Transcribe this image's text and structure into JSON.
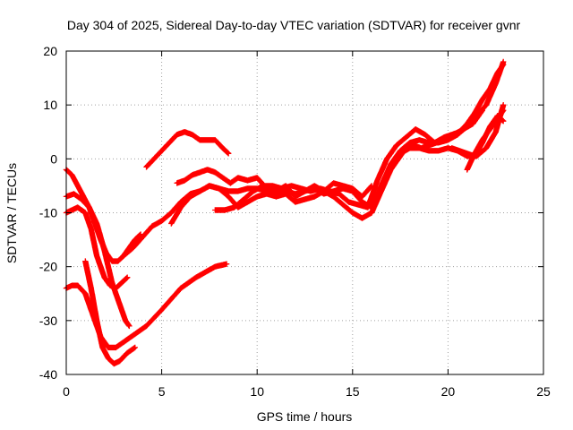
{
  "chart_data": {
    "type": "scatter",
    "title": "Day 304 of 2025, Sidereal Day-to-day VTEC variation (SDTVAR) for receiver gvnr",
    "xlabel": "GPS time / hours",
    "ylabel": "SDTVAR / TECUs",
    "xlim": [
      0,
      25
    ],
    "ylim": [
      -40,
      20
    ],
    "xticks": [
      "0",
      "5",
      "10",
      "15",
      "20",
      "25"
    ],
    "yticks": [
      "-40",
      "-30",
      "-20",
      "-10",
      "0",
      "10",
      "20"
    ],
    "grid": true,
    "marker": "+",
    "color": "#ff0000",
    "series": [
      {
        "x": [
          0.0,
          0.4,
          0.8,
          1.2,
          1.6,
          2.0,
          2.4,
          2.8,
          3.1,
          3.3
        ],
        "y": [
          -7,
          -6.5,
          -7.5,
          -9,
          -12,
          -17,
          -23,
          -27,
          -30,
          -31
        ]
      },
      {
        "x": [
          0.0,
          0.3,
          0.6,
          1.0,
          1.4,
          1.8,
          2.2,
          2.6,
          3.0,
          3.6,
          4.2,
          5.0,
          6.0,
          6.8,
          7.3,
          7.8,
          8.4
        ],
        "y": [
          -24,
          -23.5,
          -23.5,
          -25,
          -29,
          -33,
          -35,
          -35,
          -34,
          -32.5,
          -31,
          -28,
          -24,
          -22,
          -21,
          -20,
          -19.5
        ]
      },
      {
        "x": [
          1.0,
          1.3,
          1.6,
          1.9,
          2.2,
          2.5,
          2.8,
          3.2,
          3.6
        ],
        "y": [
          -19,
          -24,
          -30,
          -35,
          -37,
          -38,
          -37.5,
          -36,
          -35
        ]
      },
      {
        "x": [
          0.0,
          0.3,
          0.6,
          1.0,
          1.3,
          1.6,
          2.0,
          2.3,
          2.6,
          2.9,
          3.2
        ],
        "y": [
          -10,
          -9.5,
          -9,
          -10,
          -13,
          -18,
          -22,
          -23.5,
          -24,
          -23,
          -22
        ]
      },
      {
        "x": [
          0.0,
          0.3,
          0.6,
          0.9,
          1.2,
          1.5,
          1.8,
          2.1,
          2.4,
          2.7,
          3.0,
          3.3,
          3.6,
          3.9
        ],
        "y": [
          -2,
          -3,
          -5,
          -7,
          -9,
          -12,
          -15,
          -17.5,
          -19,
          -19,
          -18,
          -16.5,
          -15,
          -14
        ]
      },
      {
        "x": [
          3.0,
          3.5,
          4.0,
          4.5,
          5.0,
          5.5,
          6.0,
          6.5,
          7.0,
          7.5,
          8.0,
          8.5,
          9.0,
          9.5,
          10.0,
          10.5,
          11.0,
          11.5,
          12.0,
          12.5,
          13.0,
          13.5,
          14.0,
          14.5,
          15.0,
          15.5,
          16.0,
          16.5,
          17.0,
          17.5,
          18.0,
          18.5,
          19.0,
          19.5,
          20.0,
          20.5,
          21.0,
          21.5,
          22.0,
          22.5,
          22.9
        ],
        "y": [
          -18,
          -16.5,
          -14.5,
          -12.5,
          -11.5,
          -10,
          -8,
          -6.5,
          -6,
          -5,
          -5.5,
          -6,
          -6,
          -5.5,
          -5.5,
          -6,
          -6.5,
          -6,
          -6.5,
          -6,
          -5.5,
          -6.5,
          -6,
          -5.5,
          -6,
          -8,
          -9,
          -5,
          -1,
          1.5,
          3,
          3.5,
          3,
          3,
          3.5,
          4.5,
          6,
          8,
          10,
          14,
          18
        ]
      },
      {
        "x": [
          4.2,
          4.6,
          5.0,
          5.4,
          5.8,
          6.2,
          6.6,
          7.0,
          7.4,
          7.8,
          8.2,
          8.5
        ],
        "y": [
          -1.5,
          0,
          1.5,
          3,
          4.5,
          5,
          4.5,
          3.5,
          3.5,
          3.5,
          2,
          1
        ]
      },
      {
        "x": [
          5.5,
          6.0,
          6.5,
          7.0,
          7.5,
          8.0,
          8.5,
          9.0,
          9.5,
          10.0,
          10.5,
          11.0,
          11.5,
          12.0,
          12.5,
          13.0,
          13.5,
          14.0,
          14.5,
          15.0,
          15.5,
          16.0,
          16.5,
          17.0,
          17.5,
          18.0,
          18.5,
          19.0,
          19.5,
          20.0,
          20.5,
          21.0,
          21.5,
          22.0,
          22.5,
          22.9
        ],
        "y": [
          -12,
          -9,
          -7,
          -6,
          -5,
          -5.5,
          -7,
          -9,
          -8,
          -7,
          -6.5,
          -7,
          -6.5,
          -8,
          -7.5,
          -7,
          -6,
          -7,
          -8.5,
          -10,
          -11,
          -10,
          -6,
          -2,
          1,
          2,
          2,
          1.5,
          1.5,
          2,
          1.5,
          0.5,
          0.5,
          2,
          5,
          10
        ]
      },
      {
        "x": [
          5.8,
          6.2,
          6.6,
          7.0,
          7.4,
          7.8,
          8.2,
          8.6,
          9.0,
          9.5,
          10.0,
          10.5,
          11.0,
          11.5,
          12.0,
          12.5,
          13.0,
          13.5,
          14.0,
          14.5,
          15.0,
          15.5,
          16.0
        ],
        "y": [
          -4.5,
          -4,
          -3,
          -2.5,
          -2,
          -2.5,
          -3.5,
          -4.5,
          -3.5,
          -4,
          -3.5,
          -5.5,
          -6,
          -5,
          -7,
          -6,
          -5,
          -6,
          -4.5,
          -5,
          -5.5,
          -7,
          -5
        ]
      },
      {
        "x": [
          7.8,
          8.3,
          8.8,
          9.3,
          9.8,
          10.3,
          10.8,
          11.3,
          11.8,
          12.3,
          12.8,
          13.3,
          13.8,
          14.3,
          14.8,
          15.3,
          15.8,
          16.3,
          16.8,
          17.3,
          17.8,
          18.3,
          18.8,
          19.3,
          19.8,
          20.3,
          20.8,
          21.3,
          21.8
        ],
        "y": [
          -9.5,
          -9.5,
          -9,
          -7.5,
          -6,
          -5,
          -5,
          -5.5,
          -5,
          -5.5,
          -6,
          -5.5,
          -6,
          -6.5,
          -8,
          -8.5,
          -9,
          -4,
          0,
          2.5,
          4,
          5.5,
          4.5,
          3,
          4,
          4.5,
          5.5,
          6.5,
          9
        ]
      },
      {
        "x": [
          16.6,
          17.0,
          17.4,
          17.8,
          18.2,
          18.6,
          19.0,
          19.4,
          19.8,
          20.2,
          20.6,
          21.0,
          21.4,
          21.8,
          22.2,
          22.6,
          22.9
        ],
        "y": [
          -5,
          -2,
          0,
          2,
          2.5,
          2,
          2.5,
          3,
          4,
          4.5,
          5,
          6.5,
          8.5,
          11,
          13,
          16,
          17.5
        ]
      },
      {
        "x": [
          21.0,
          21.4,
          21.8,
          22.2,
          22.6,
          22.9
        ],
        "y": [
          -2,
          1,
          3.5,
          5.5,
          7.5,
          9
        ]
      },
      {
        "x": [
          20.2,
          20.6,
          21.0,
          21.4,
          21.8,
          22.2,
          22.6,
          22.9
        ],
        "y": [
          2,
          1.5,
          1,
          0.5,
          3,
          6,
          8,
          7
        ]
      }
    ]
  }
}
